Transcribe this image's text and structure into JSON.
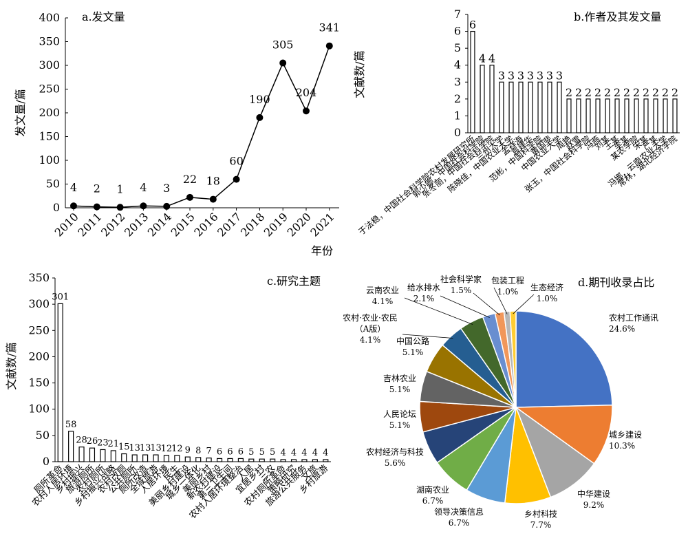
{
  "chart_data": [
    {
      "id": "a",
      "type": "line",
      "title": "a.发文量",
      "xlabel": "年份",
      "ylabel": "发文量/篇",
      "ylim": [
        0,
        400
      ],
      "yticks": [
        "0",
        "50",
        "100",
        "150",
        "200",
        "250",
        "300",
        "350",
        "400"
      ],
      "categories": [
        "2010",
        "2011",
        "2012",
        "2013",
        "2014",
        "2015",
        "2016",
        "2017",
        "2018",
        "2019",
        "2020",
        "2021"
      ],
      "values": [
        4,
        2,
        1,
        4,
        3,
        22,
        18,
        60,
        190,
        305,
        204,
        341
      ],
      "value_labels": [
        "4",
        "2",
        "1",
        "4",
        "3",
        "22",
        "18",
        "60",
        "190",
        "305",
        "204",
        "341"
      ],
      "grid": false
    },
    {
      "id": "b",
      "type": "bar",
      "title": "b.作者及其发文量",
      "ylabel": "文献数/篇",
      "ylim": [
        0,
        7
      ],
      "yticks": [
        "0",
        "1",
        "2",
        "3",
        "4",
        "5",
        "6",
        "7"
      ],
      "categories": [
        "于法稳，中国社会科学院农村发展研究所",
        "郭少卿，中国社会科学院",
        "张冬丽，中国社会科学院",
        "兰州大学",
        "陈晓佳，中国农业大学",
        "孟祥海",
        "袁建华",
        "范彬，中国科学院",
        "黄国斐",
        "中国农业大学",
        "周艳",
        "赵雪",
        "张玉，中国社会科学院",
        "冯燕",
        "刘某",
        "王某",
        "李某",
        "某农学院",
        "宋某",
        "严某",
        "冯娜，云南农业大学",
        "常林，湖北经济学院"
      ],
      "values": [
        6,
        4,
        4,
        3,
        3,
        3,
        3,
        3,
        3,
        3,
        2,
        2,
        2,
        2,
        2,
        2,
        2,
        2,
        2,
        2,
        2,
        2
      ],
      "value_labels": [
        "6",
        "4",
        "4",
        "3",
        "3",
        "3",
        "3",
        "3",
        "3",
        "3",
        "2",
        "2",
        "2",
        "2",
        "2",
        "2",
        "2",
        "2",
        "2",
        "2",
        "2",
        "2"
      ],
      "grid": false
    },
    {
      "id": "c",
      "type": "bar",
      "title": "c.研究主题",
      "ylabel": "文献数/篇",
      "ylim": [
        0,
        350
      ],
      "yticks": [
        "0",
        "50",
        "100",
        "150",
        "200",
        "250",
        "300",
        "350"
      ],
      "categories": [
        "厕所革命",
        "农村人居环境",
        "乡村振兴",
        "旅游厕所",
        "农村厕所",
        "乡村振兴战略",
        "农村改厕",
        "公共厕所",
        "厕所改造",
        "全域旅游",
        "人居环境",
        "民生",
        "美丽乡村建设",
        "城乡一体化",
        "美丽乡村",
        "新农村建设",
        "第三卫生间",
        "农村人居环境整治",
        "人居",
        "宜居乡村",
        "三农",
        "农村厕所革命",
        "策略研究",
        "旅游公共服务",
        "文旅",
        "乡村旅游"
      ],
      "values": [
        301,
        58,
        28,
        26,
        23,
        21,
        15,
        13,
        13,
        13,
        12,
        12,
        9,
        8,
        7,
        6,
        6,
        6,
        5,
        5,
        5,
        4,
        4,
        4,
        4,
        4
      ],
      "value_labels": [
        "301",
        "58",
        "28",
        "26",
        "23",
        "21",
        "15",
        "13",
        "13",
        "13",
        "12",
        "12",
        "9",
        "8",
        "7",
        "6",
        "6",
        "6",
        "5",
        "5",
        "5",
        "4",
        "4",
        "4",
        "4",
        "4"
      ],
      "grid": false
    },
    {
      "id": "d",
      "type": "pie",
      "title": "d.期刊收录占比",
      "slices": [
        {
          "label": "农村工作通讯",
          "value": 24.6,
          "pct": "24.6%",
          "color": "#4472c4"
        },
        {
          "label": "城乡建设",
          "value": 10.3,
          "pct": "10.3%",
          "color": "#ed7d31"
        },
        {
          "label": "中华建设",
          "value": 9.2,
          "pct": "9.2%",
          "color": "#a5a5a5"
        },
        {
          "label": "乡村科技",
          "value": 7.7,
          "pct": "7.7%",
          "color": "#ffc000"
        },
        {
          "label": "领导决策信息",
          "value": 6.7,
          "pct": "6.7%",
          "color": "#5b9bd5"
        },
        {
          "label": "湖南农业",
          "value": 6.7,
          "pct": "6.7%",
          "color": "#70ad47"
        },
        {
          "label": "农村经济与科技",
          "value": 5.6,
          "pct": "5.6%",
          "color": "#264478"
        },
        {
          "label": "人民论坛",
          "value": 5.1,
          "pct": "5.1%",
          "color": "#9e480e"
        },
        {
          "label": "吉林农业",
          "value": 5.1,
          "pct": "5.1%",
          "color": "#636363"
        },
        {
          "label": "中国公路",
          "value": 5.1,
          "pct": "5.1%",
          "color": "#997300"
        },
        {
          "label": "农村·农业·农民（A版）",
          "value": 4.1,
          "pct": "4.1%",
          "color": "#255e91"
        },
        {
          "label": "云南农业",
          "value": 4.1,
          "pct": "4.1%",
          "color": "#43682b"
        },
        {
          "label": "给水排水",
          "value": 2.1,
          "pct": "2.1%",
          "color": "#698ed0"
        },
        {
          "label": "社会科学家",
          "value": 1.5,
          "pct": "1.5%",
          "color": "#f1975a"
        },
        {
          "label": "包装工程",
          "value": 1.0,
          "pct": "1.0%",
          "color": "#b7b7b7"
        },
        {
          "label": "生态经济",
          "value": 1.0,
          "pct": "1.0%",
          "color": "#ffcd33"
        }
      ]
    }
  ]
}
